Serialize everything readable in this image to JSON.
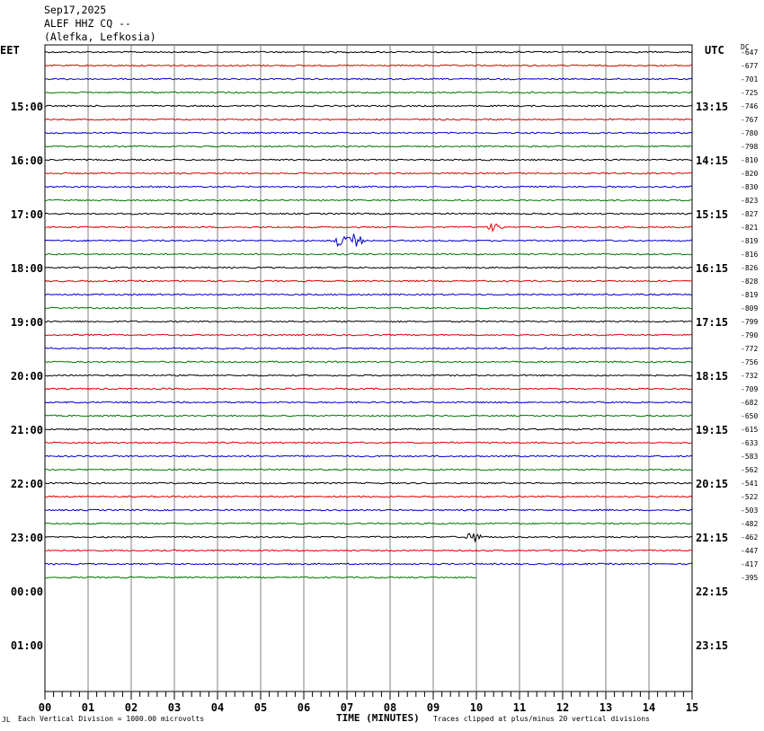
{
  "header": {
    "date": "Sep17,2025",
    "station": "ALEF HHZ CQ --",
    "location": "(Alefka, Lefkosia)"
  },
  "labels": {
    "left_zone": "EET",
    "right_zone": "UTC",
    "dc_label": "DC"
  },
  "footer": {
    "scale_note": "Each Vertical Division = 1000.00 microvolts",
    "axis_title": "TIME (MINUTES)",
    "clip_note": "Traces clipped at plus/minus 20 vertical divisions",
    "corner_mark": "JL"
  },
  "chart_data": {
    "type": "line",
    "title": "ALEF HHZ CQ --",
    "xlabel": "TIME (MINUTES)",
    "x_range": [
      0,
      15
    ],
    "x_ticks": [
      "00",
      "01",
      "02",
      "03",
      "04",
      "05",
      "06",
      "07",
      "08",
      "09",
      "10",
      "11",
      "12",
      "13",
      "14",
      "15"
    ],
    "rows_total": 48,
    "rows_per_hour": 4,
    "trace_colors": [
      "#000000",
      "#dd0000",
      "#0000cc",
      "#007700"
    ],
    "left_hour_labels": [
      "15:00",
      "16:00",
      "17:00",
      "18:00",
      "19:00",
      "20:00",
      "21:00",
      "22:00",
      "23:00",
      "00:00",
      "01:00"
    ],
    "right_hour_labels": [
      "13:15",
      "14:15",
      "15:15",
      "16:15",
      "17:15",
      "18:15",
      "19:15",
      "20:15",
      "21:15",
      "22:15",
      "23:15"
    ],
    "dc_offsets": [
      "-647",
      "-677",
      "-701",
      "-725",
      "-746",
      "-767",
      "-780",
      "-798",
      "-810",
      "-820",
      "-830",
      "-823",
      "-827",
      "-821",
      "-819",
      "-816",
      "-826",
      "-828",
      "-819",
      "-809",
      "-799",
      "-790",
      "-772",
      "-756",
      "-732",
      "-709",
      "-682",
      "-650",
      "-615",
      "-633",
      "-583",
      "-562",
      "-541",
      "-522",
      "-503",
      "-482",
      "-462",
      "-447",
      "-417",
      "-395"
    ],
    "traces_recorded": 40,
    "last_trace_end_minute": 10.0,
    "events": [
      {
        "trace": 14,
        "minute": 6.9,
        "amplitude": 0.7
      },
      {
        "trace": 14,
        "minute": 7.2,
        "amplitude": 0.6
      },
      {
        "trace": 13,
        "minute": 10.4,
        "amplitude": 0.35
      },
      {
        "trace": 36,
        "minute": 9.95,
        "amplitude": 0.45
      }
    ]
  }
}
